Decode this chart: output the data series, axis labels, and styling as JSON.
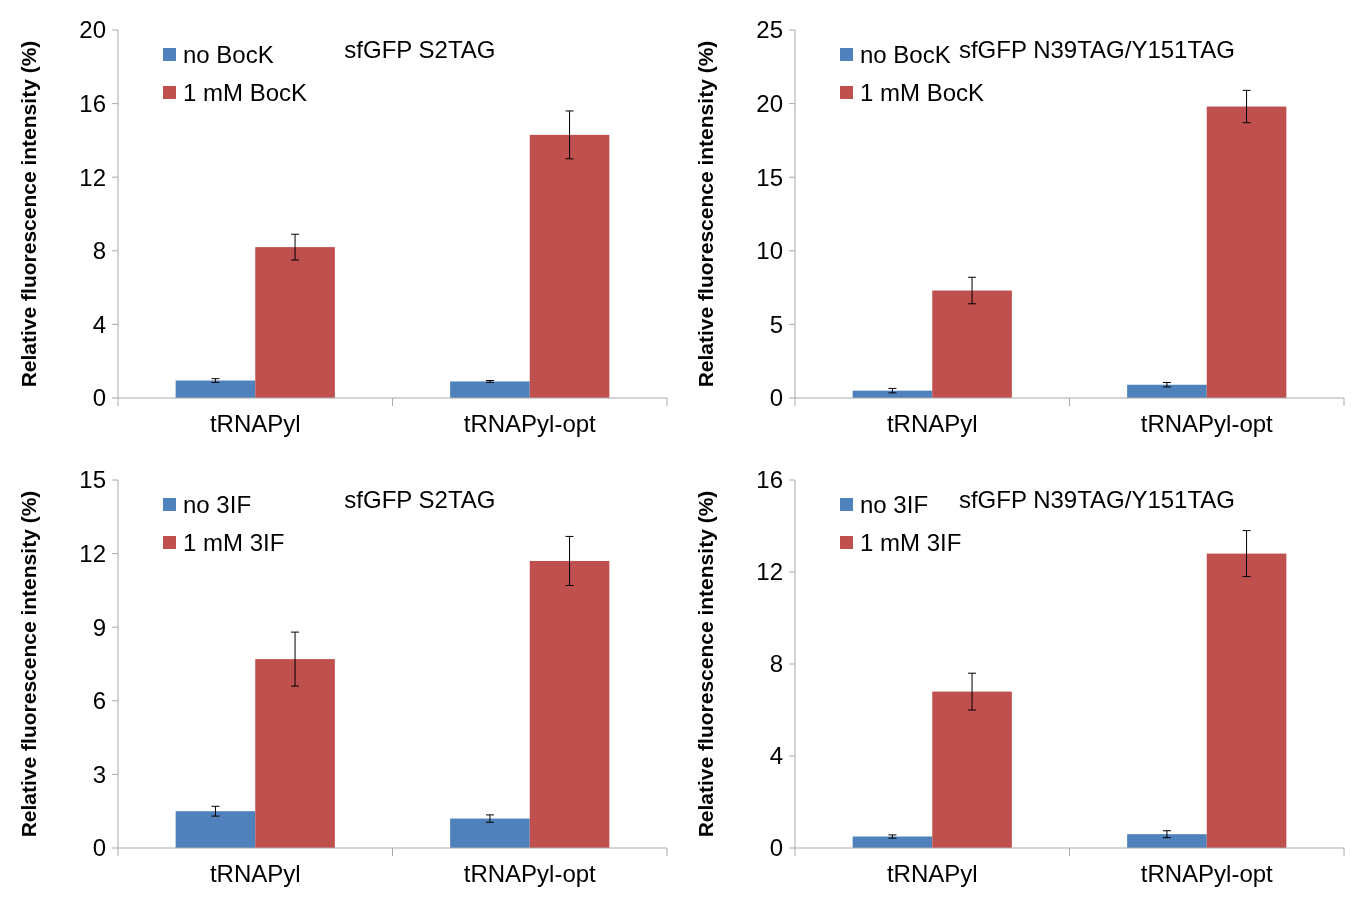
{
  "chart_data": [
    {
      "type": "bar",
      "title": "sfGFP S2TAG",
      "ylabel": "Relative  fluorescence  intensity  (%)",
      "categories": [
        "tRNAPyl",
        "tRNAPyl-opt"
      ],
      "ylim": [
        0,
        20
      ],
      "yticks": [
        0,
        4,
        8,
        12,
        16,
        20
      ],
      "legend": "top left",
      "grid": false,
      "series": [
        {
          "name": "no BocK",
          "color": "#4f81bd",
          "values": [
            0.95,
            0.9
          ],
          "errors": [
            0.1,
            0.05
          ]
        },
        {
          "name": "1 mM BocK",
          "color": "#c0504d",
          "values": [
            8.2,
            14.3
          ],
          "errors": [
            0.7,
            1.3
          ]
        }
      ]
    },
    {
      "type": "bar",
      "title": "sfGFP N39TAG/Y151TAG",
      "ylabel": "Relative fluorescence intensity (%)",
      "categories": [
        "tRNAPyl",
        "tRNAPyl-opt"
      ],
      "ylim": [
        0,
        25
      ],
      "yticks": [
        0,
        5,
        10,
        15,
        20,
        25
      ],
      "legend": "top left",
      "grid": false,
      "series": [
        {
          "name": "no BocK",
          "color": "#4f81bd",
          "values": [
            0.5,
            0.9
          ],
          "errors": [
            0.15,
            0.15
          ]
        },
        {
          "name": "1 mM BocK",
          "color": "#c0504d",
          "values": [
            7.3,
            19.8
          ],
          "errors": [
            0.9,
            1.1
          ]
        }
      ]
    },
    {
      "type": "bar",
      "title": "sfGFP S2TAG",
      "ylabel": "Relative fluorescence intensity (%)",
      "categories": [
        "tRNAPyl",
        "tRNAPyl-opt"
      ],
      "ylim": [
        0,
        15
      ],
      "yticks": [
        0,
        3,
        6,
        9,
        12,
        15
      ],
      "legend": "top left",
      "grid": false,
      "series": [
        {
          "name": "no 3IF",
          "color": "#4f81bd",
          "values": [
            1.5,
            1.2
          ],
          "errors": [
            0.2,
            0.15
          ]
        },
        {
          "name": "1 mM 3IF",
          "color": "#c0504d",
          "values": [
            7.7,
            11.7
          ],
          "errors": [
            1.1,
            1.0
          ]
        }
      ]
    },
    {
      "type": "bar",
      "title": "sfGFP N39TAG/Y151TAG",
      "ylabel": "Relative fluorescence intensity (%)",
      "categories": [
        "tRNAPyl",
        "tRNAPyl-opt"
      ],
      "ylim": [
        0,
        16
      ],
      "yticks": [
        0,
        4,
        8,
        12,
        16
      ],
      "legend": "top left",
      "grid": false,
      "series": [
        {
          "name": "no 3IF",
          "color": "#4f81bd",
          "values": [
            0.5,
            0.6
          ],
          "errors": [
            0.07,
            0.15
          ]
        },
        {
          "name": "1 mM 3IF",
          "color": "#c0504d",
          "values": [
            6.8,
            12.8
          ],
          "errors": [
            0.8,
            1.0
          ]
        }
      ]
    }
  ]
}
